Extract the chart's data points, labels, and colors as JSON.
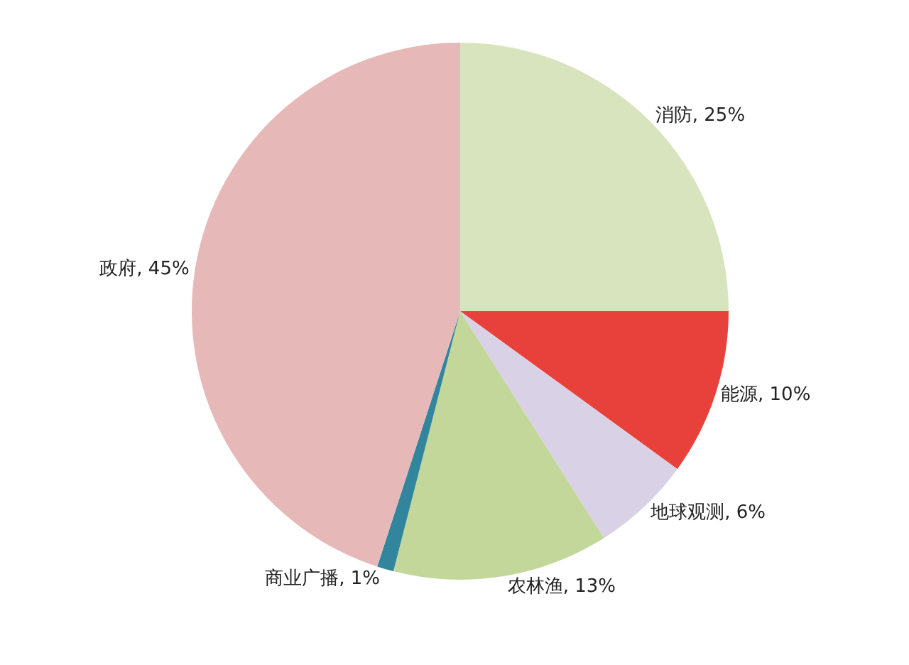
{
  "chart_data": {
    "type": "pie",
    "categories": [
      "消防",
      "能源",
      "地球观测",
      "农林渔",
      "商业广播",
      "政府"
    ],
    "values": [
      25,
      10,
      6,
      13,
      1,
      45
    ],
    "value_labels": [
      "25%",
      "10%",
      "6%",
      "13%",
      "1%",
      "45%"
    ],
    "colors": [
      "#d7e4bd",
      "#e8403a",
      "#d9d2e6",
      "#c4d79b",
      "#31859c",
      "#e6b9b8"
    ],
    "legend": false
  }
}
